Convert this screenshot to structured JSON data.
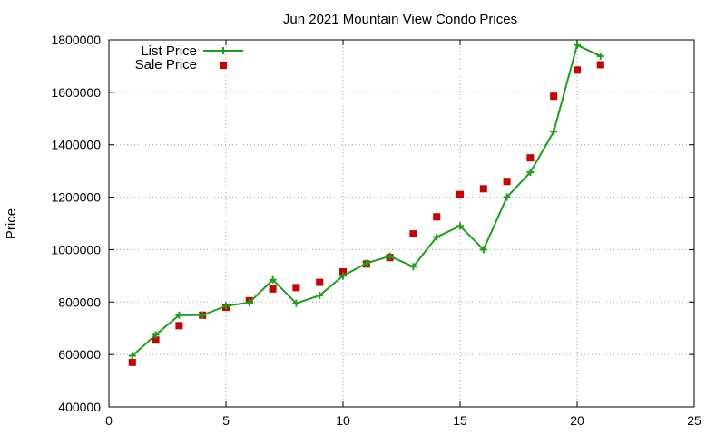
{
  "chart_data": {
    "type": "line",
    "title": "Jun 2021 Mountain View Condo Prices",
    "xlabel": "",
    "ylabel": "Price",
    "xlim": [
      0,
      25
    ],
    "ylim": [
      400000,
      1800000
    ],
    "xticks": [
      0,
      5,
      10,
      15,
      20,
      25
    ],
    "yticks": [
      400000,
      600000,
      800000,
      1000000,
      1200000,
      1400000,
      1600000,
      1800000
    ],
    "grid": true,
    "legend_position": "top-left",
    "series": [
      {
        "name": "List Price",
        "style": "line-with-plus-markers",
        "color": "#1aa01a",
        "x": [
          1,
          2,
          3,
          4,
          5,
          6,
          7,
          8,
          9,
          10,
          11,
          12,
          13,
          14,
          15,
          16,
          17,
          18,
          19,
          20,
          21
        ],
        "y": [
          595000,
          675000,
          750000,
          750000,
          785000,
          798000,
          885000,
          795000,
          825000,
          900000,
          948000,
          975000,
          935000,
          1048000,
          1090000,
          1000000,
          1200000,
          1295000,
          1450000,
          1780000,
          1738000
        ]
      },
      {
        "name": "Sale Price",
        "style": "square-markers",
        "color": "#cc0000",
        "x": [
          1,
          2,
          3,
          4,
          5,
          6,
          7,
          8,
          9,
          10,
          11,
          12,
          13,
          14,
          15,
          16,
          17,
          18,
          19,
          20,
          21
        ],
        "y": [
          570000,
          655000,
          710000,
          750000,
          780000,
          805000,
          850000,
          855000,
          875000,
          915000,
          945000,
          970000,
          1060000,
          1125000,
          1210000,
          1232000,
          1260000,
          1350000,
          1585000,
          1685000,
          1705000
        ]
      }
    ]
  }
}
